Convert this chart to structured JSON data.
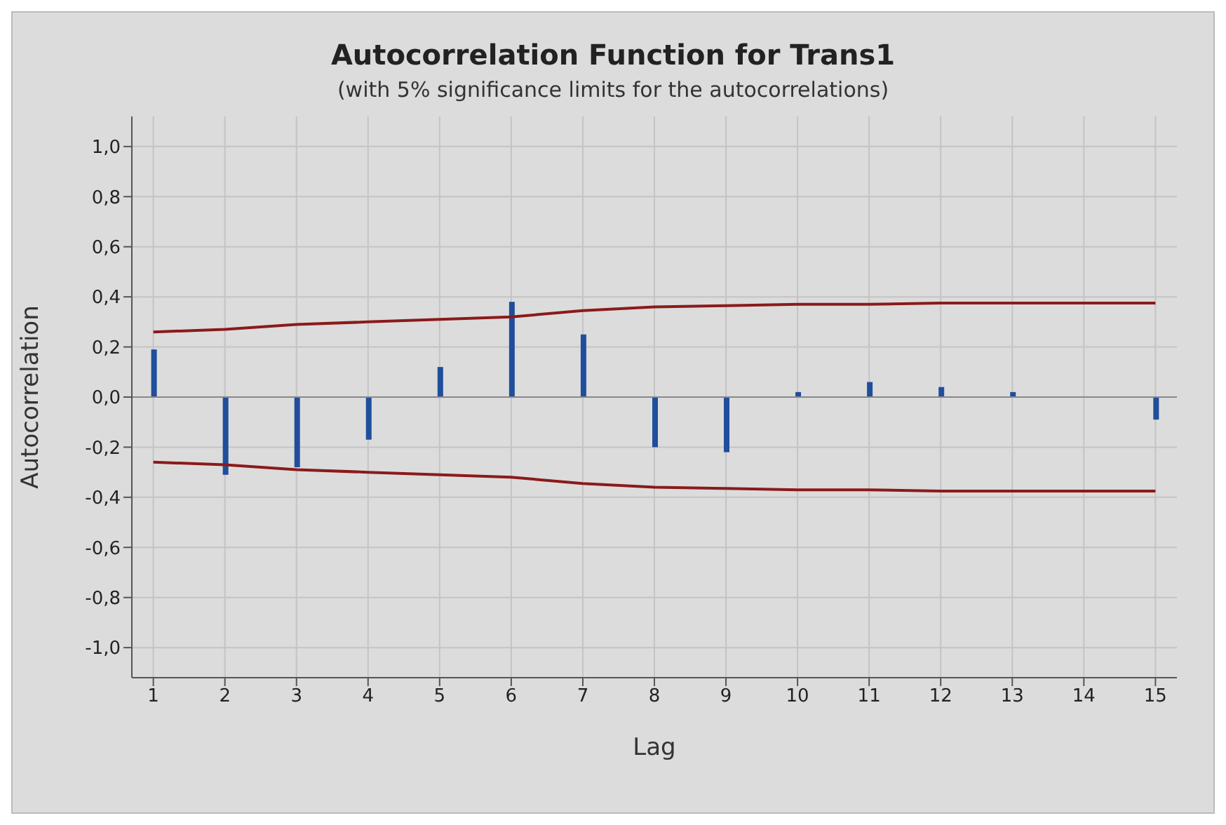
{
  "chart_data": {
    "type": "bar",
    "title": "Autocorrelation Function for Trans1",
    "subtitle": "(with 5% significance limits for the autocorrelations)",
    "xlabel": "Lag",
    "ylabel": "Autocorrelation",
    "x": [
      1,
      2,
      3,
      4,
      5,
      6,
      7,
      8,
      9,
      10,
      11,
      12,
      13,
      14,
      15
    ],
    "series": [
      {
        "color": "#1f4e9c",
        "values": [
          0.19,
          -0.31,
          -0.28,
          -0.17,
          0.12,
          0.38,
          0.25,
          -0.2,
          -0.22,
          0.02,
          0.06,
          0.04,
          0.02,
          0,
          -0.09
        ]
      },
      {
        "type": "line",
        "color": "#8b1a1a",
        "values": [
          0.26,
          0.27,
          0.29,
          0.3,
          0.31,
          0.32,
          0.345,
          0.36,
          0.365,
          0.37,
          0.37,
          0.375,
          0.375,
          0.375,
          0.375
        ]
      },
      {
        "type": "line",
        "color": "#8b1a1a",
        "values": [
          -0.26,
          -0.27,
          -0.29,
          -0.3,
          -0.31,
          -0.32,
          -0.345,
          -0.36,
          -0.365,
          -0.37,
          -0.37,
          -0.375,
          -0.375,
          -0.375,
          -0.375
        ]
      }
    ],
    "xlim": [
      0.7,
      15.3
    ],
    "xticks": [
      1,
      2,
      3,
      4,
      5,
      6,
      7,
      8,
      9,
      10,
      11,
      12,
      13,
      14,
      15
    ],
    "ylim": [
      -1.12,
      1.12
    ],
    "yticks": [
      {
        "value": -1,
        "label": "-1,0"
      },
      {
        "value": -0.8,
        "label": "-0,8"
      },
      {
        "value": -0.6,
        "label": "-0,6"
      },
      {
        "value": -0.4,
        "label": "-0,4"
      },
      {
        "value": -0.2,
        "label": "-0,2"
      },
      {
        "value": 0,
        "label": "0,0"
      },
      {
        "value": 0.2,
        "label": "0,2"
      },
      {
        "value": 0.4,
        "label": "0,4"
      },
      {
        "value": 0.6,
        "label": "0,6"
      },
      {
        "value": 0.8,
        "label": "0,8"
      },
      {
        "value": 1,
        "label": "1,0"
      }
    ],
    "ref_lines": [
      {
        "axis": "y",
        "value": 0,
        "color": "#888888"
      }
    ],
    "grid": true,
    "marker": "none",
    "legend": false
  }
}
